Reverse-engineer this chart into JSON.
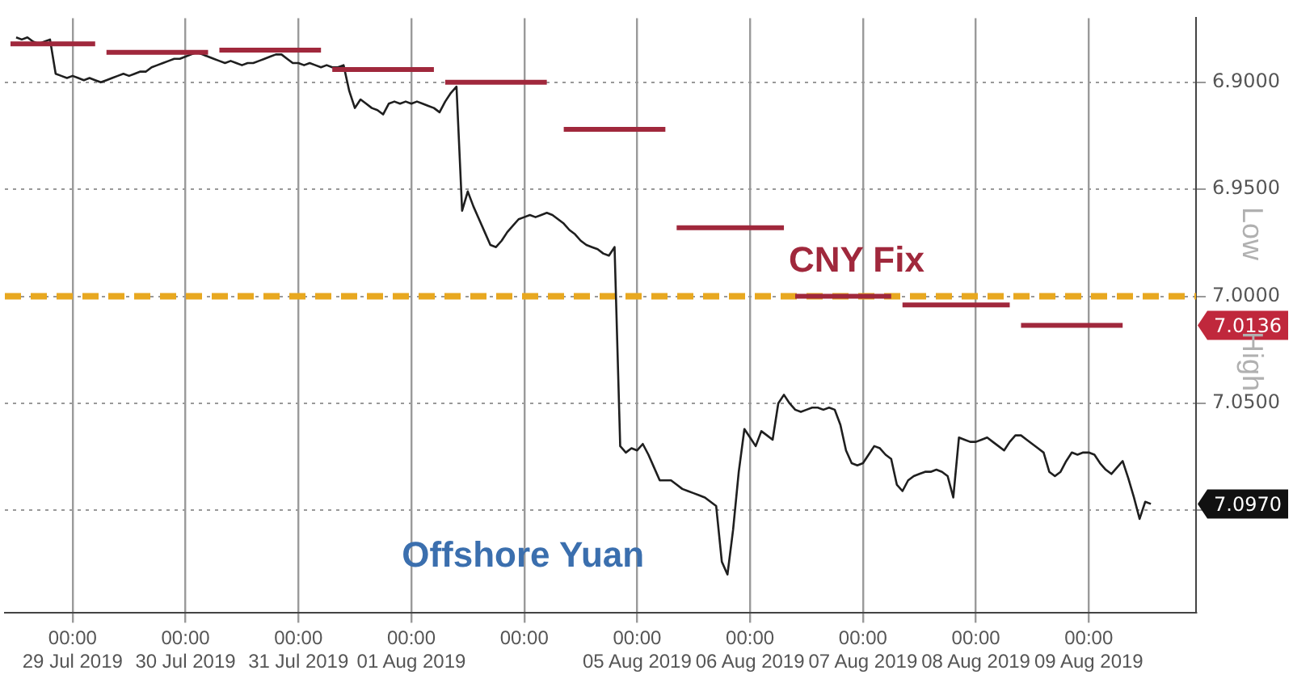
{
  "chart_data": {
    "type": "line",
    "annotations": [
      "Low",
      "High",
      "7.0136",
      "7.0970"
    ],
    "categories": [
      null,
      null,
      null,
      null,
      null,
      null,
      null,
      null,
      null,
      null,
      null,
      null,
      "00:00 29 Jul 2019",
      null,
      null,
      null,
      null,
      null,
      null,
      null,
      null,
      null,
      null,
      null,
      null,
      null,
      null,
      null,
      null,
      null,
      null,
      null,
      "00:00 30 Jul 2019",
      null,
      null,
      null,
      null,
      null,
      null,
      null,
      null,
      null,
      null,
      null,
      null,
      null,
      null,
      null,
      null,
      null,
      null,
      null,
      "00:00 31 Jul 2019",
      null,
      null,
      null,
      null,
      null,
      null,
      null,
      null,
      null,
      null,
      null,
      null,
      null,
      null,
      null,
      null,
      null,
      null,
      null,
      "00:00 01 Aug 2019",
      null,
      null,
      null,
      null,
      null,
      null,
      null,
      null,
      null,
      null,
      null,
      null,
      null,
      null,
      null,
      null,
      null,
      null,
      null,
      "00:00",
      null,
      null,
      null,
      null,
      null,
      null,
      null,
      null,
      null,
      null,
      null,
      null,
      null,
      null,
      null,
      null,
      null,
      null,
      null,
      "00:00 05 Aug 2019",
      null,
      null,
      null,
      null,
      null,
      null,
      null,
      null,
      null,
      null,
      null,
      null,
      null,
      null,
      null,
      null,
      null,
      null,
      null,
      "00:00 06 Aug 2019",
      null,
      null,
      null,
      null,
      null,
      null,
      null,
      null,
      null,
      null,
      null,
      null,
      null,
      null,
      null,
      null,
      null,
      null,
      null,
      "00:00 07 Aug 2019",
      null,
      null,
      null,
      null,
      null,
      null,
      null,
      null,
      null,
      null,
      null,
      null,
      null,
      null,
      null,
      null,
      null,
      null,
      null,
      "00:00 08 Aug 2019",
      null,
      null,
      null,
      null,
      null,
      null,
      null,
      null,
      null,
      null,
      null,
      null,
      null,
      null,
      null,
      null,
      null,
      null,
      null,
      "00:00 09 Aug 2019",
      null,
      null,
      null,
      null,
      null,
      null,
      null,
      null,
      null,
      null,
      null,
      null,
      null,
      null,
      null,
      null,
      null,
      null,
      null
    ],
    "ylim": [
      7.148,
      6.87
    ],
    "yticks": [
      {
        "value": 6.9,
        "label": "6.9000"
      },
      {
        "value": 6.95,
        "label": "6.9500"
      },
      {
        "value": 7.0,
        "label": "7.0000"
      },
      {
        "value": 7.05,
        "label": "7.0500"
      },
      {
        "value": 7.1,
        "label": null
      }
    ],
    "grid": true,
    "legend": false,
    "marker": "none",
    "line_style": "solid",
    "ref_lines": [
      {
        "axis": "y",
        "value": 7.0,
        "color": "#e8a820",
        "line_style": "dashed"
      }
    ],
    "series": [
      {
        "name": "Offshore Yuan",
        "color": "#1f1f1f",
        "values": [
          null,
          null,
          6.879,
          6.88,
          6.879,
          6.881,
          6.882,
          6.881,
          6.88,
          6.896,
          6.897,
          6.898,
          6.897,
          6.898,
          6.899,
          6.898,
          6.899,
          6.9,
          6.899,
          6.898,
          6.897,
          6.896,
          6.897,
          6.896,
          6.895,
          6.895,
          6.893,
          6.892,
          6.891,
          6.89,
          6.889,
          6.889,
          6.888,
          6.887,
          6.886,
          6.887,
          6.888,
          6.889,
          6.89,
          6.891,
          6.89,
          6.891,
          6.892,
          6.891,
          6.891,
          6.89,
          6.889,
          6.888,
          6.887,
          6.887,
          6.889,
          6.891,
          6.891,
          6.892,
          6.891,
          6.892,
          6.893,
          6.892,
          6.893,
          6.893,
          6.892,
          6.904,
          6.912,
          6.908,
          6.91,
          6.912,
          6.913,
          6.915,
          6.91,
          6.909,
          6.91,
          6.909,
          6.91,
          6.909,
          6.91,
          6.911,
          6.912,
          6.914,
          6.909,
          6.905,
          6.902,
          6.96,
          6.951,
          6.958,
          6.964,
          6.97,
          6.976,
          6.977,
          6.974,
          6.97,
          6.967,
          6.964,
          6.963,
          6.962,
          6.963,
          6.962,
          6.961,
          6.962,
          6.964,
          6.966,
          6.969,
          6.971,
          6.974,
          6.976,
          6.977,
          6.978,
          6.98,
          6.981,
          6.977,
          7.07,
          7.073,
          7.071,
          7.072,
          7.069,
          7.074,
          7.08,
          7.086,
          7.086,
          7.086,
          7.088,
          7.09,
          7.091,
          7.092,
          7.093,
          7.094,
          7.096,
          7.098,
          7.124,
          7.13,
          7.109,
          7.082,
          7.062,
          7.066,
          7.07,
          7.063,
          7.065,
          7.067,
          7.05,
          7.046,
          7.05,
          7.053,
          7.054,
          7.053,
          7.052,
          7.052,
          7.053,
          7.052,
          7.053,
          7.06,
          7.072,
          7.078,
          7.079,
          7.078,
          7.074,
          7.07,
          7.071,
          7.074,
          7.076,
          7.088,
          7.091,
          7.086,
          7.084,
          7.083,
          7.082,
          7.082,
          7.081,
          7.082,
          7.084,
          7.094,
          7.066,
          7.067,
          7.068,
          7.068,
          7.067,
          7.066,
          7.068,
          7.07,
          7.072,
          7.068,
          7.065,
          7.065,
          7.067,
          7.069,
          7.071,
          7.073,
          7.082,
          7.084,
          7.082,
          7.077,
          7.073,
          7.074,
          7.073,
          7.073,
          7.074,
          7.078,
          7.081,
          7.083,
          7.08,
          7.077,
          7.085,
          7.094,
          7.104,
          7.096,
          7.097,
          null,
          null,
          null,
          null,
          null,
          null,
          null,
          null
        ]
      },
      {
        "name": "CNY Fix",
        "color": "#a0283c",
        "values": [
          null,
          6.882,
          6.882,
          6.882,
          6.882,
          6.882,
          6.882,
          6.882,
          6.882,
          6.882,
          6.882,
          6.882,
          6.882,
          6.882,
          6.882,
          6.882,
          6.882,
          null,
          6.886,
          6.886,
          6.886,
          6.886,
          6.886,
          6.886,
          6.886,
          6.886,
          6.886,
          6.886,
          6.886,
          6.886,
          6.886,
          6.886,
          6.886,
          6.886,
          6.886,
          6.886,
          6.886,
          null,
          6.885,
          6.885,
          6.885,
          6.885,
          6.885,
          6.885,
          6.885,
          6.885,
          6.885,
          6.885,
          6.885,
          6.885,
          6.885,
          6.885,
          6.885,
          6.885,
          6.885,
          6.885,
          6.885,
          null,
          6.894,
          6.894,
          6.894,
          6.894,
          6.894,
          6.894,
          6.894,
          6.894,
          6.894,
          6.894,
          6.894,
          6.894,
          6.894,
          6.894,
          6.894,
          6.894,
          6.894,
          6.894,
          6.894,
          null,
          6.9,
          6.9,
          6.9,
          6.9,
          6.9,
          6.9,
          6.9,
          6.9,
          6.9,
          6.9,
          6.9,
          6.9,
          6.9,
          6.9,
          6.9,
          6.9,
          6.9,
          6.9,
          6.9,
          null,
          null,
          6.922,
          6.922,
          6.922,
          6.922,
          6.922,
          6.922,
          6.922,
          6.922,
          6.922,
          6.922,
          6.922,
          6.922,
          6.922,
          6.922,
          6.922,
          6.922,
          6.922,
          6.922,
          6.922,
          null,
          6.968,
          6.968,
          6.968,
          6.968,
          6.968,
          6.968,
          6.968,
          6.968,
          6.968,
          6.968,
          6.968,
          6.968,
          6.968,
          6.968,
          6.968,
          6.968,
          6.968,
          6.968,
          6.968,
          6.968,
          null,
          7.0,
          7.0,
          7.0,
          7.0,
          7.0,
          7.0,
          7.0,
          7.0,
          7.0,
          7.0,
          7.0,
          7.0,
          7.0,
          7.0,
          7.0,
          7.0,
          7.0,
          7.0,
          null,
          7.004,
          7.004,
          7.004,
          7.004,
          7.004,
          7.004,
          7.004,
          7.004,
          7.004,
          7.004,
          7.004,
          7.004,
          7.004,
          7.004,
          7.004,
          7.004,
          7.004,
          7.004,
          7.004,
          7.004,
          null,
          7.0136,
          7.0136,
          7.0136,
          7.0136,
          7.0136,
          7.0136,
          7.0136,
          7.0136,
          7.0136,
          7.0136,
          7.0136,
          7.0136,
          7.0136,
          7.0136,
          7.0136,
          7.0136,
          7.0136,
          7.0136,
          7.0136,
          null,
          null,
          null,
          null,
          null,
          null,
          null,
          null,
          null,
          null,
          null,
          null,
          null
        ]
      }
    ]
  }
}
